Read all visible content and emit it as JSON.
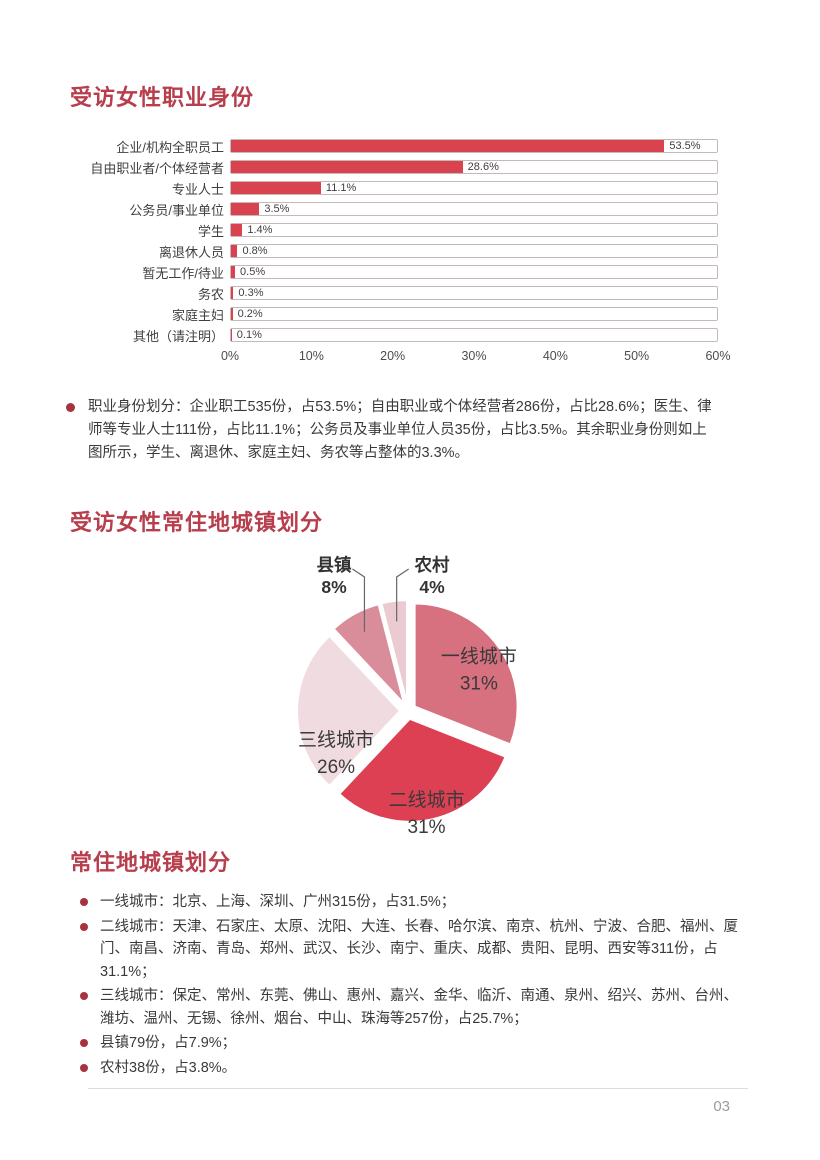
{
  "accent_color": "#b73e4c",
  "section1": {
    "title": "受访女性职业身份",
    "note": "职业身份划分：企业职工535份，占53.5%；自由职业或个体经营者286份，占比28.6%；医生、律师等专业人士111份，占比11.1%；公务员及事业单位人员35份，占比3.5%。其余职业身份则如上图所示，学生、离退休、家庭主妇、务农等占整体的3.3%。"
  },
  "section2": {
    "title": "受访女性常住地城镇划分"
  },
  "section3": {
    "title": "常住地城镇划分",
    "items": [
      "一线城市：北京、上海、深圳、广州315份，占31.5%；",
      "二线城市：天津、石家庄、太原、沈阳、大连、长春、哈尔滨、南京、杭州、宁波、合肥、福州、厦门、南昌、济南、青岛、郑州、武汉、长沙、南宁、重庆、成都、贵阳、昆明、西安等311份，占31.1%；",
      "三线城市：保定、常州、东莞、佛山、惠州、嘉兴、金华、临沂、南通、泉州、绍兴、苏州、台州、潍坊、温州、无锡、徐州、烟台、中山、珠海等257份，占25.7%；",
      "县镇79份，占7.9%；",
      "农村38份，占3.8%。"
    ]
  },
  "chart_data": [
    {
      "type": "bar",
      "orientation": "horizontal",
      "title": "受访女性职业身份",
      "categories": [
        "企业/机构全职员工",
        "自由职业者/个体经营者",
        "专业人士",
        "公务员/事业单位",
        "学生",
        "离退休人员",
        "暂无工作/待业",
        "务农",
        "家庭主妇",
        "其他（请注明）"
      ],
      "values": [
        53.5,
        28.6,
        11.1,
        3.5,
        1.4,
        0.8,
        0.5,
        0.3,
        0.2,
        0.1
      ],
      "value_labels": [
        "53.5%",
        "28.6%",
        "11.1%",
        "3.5%",
        "1.4%",
        "0.8%",
        "0.5%",
        "0.3%",
        "0.2%",
        "0.1%"
      ],
      "xlim": [
        0,
        60
      ],
      "x_ticks": [
        "0%",
        "10%",
        "20%",
        "30%",
        "40%",
        "50%",
        "60%"
      ],
      "bar_color": "#d8434f",
      "grid": false,
      "legend": "none"
    },
    {
      "type": "pie",
      "title": "受访女性常住地城镇划分",
      "slices": [
        {
          "label": "一线城市",
          "value": 31,
          "pct_label": "31%",
          "color": "#d7707f",
          "label_placement": "inside"
        },
        {
          "label": "二线城市",
          "value": 31,
          "pct_label": "31%",
          "color": "#dc4052",
          "label_placement": "inside"
        },
        {
          "label": "三线城市",
          "value": 26,
          "pct_label": "26%",
          "color": "#f0dbe0",
          "label_placement": "inside"
        },
        {
          "label": "县镇",
          "value": 8,
          "pct_label": "8%",
          "color": "#d98d9a",
          "label_placement": "outside"
        },
        {
          "label": "农村",
          "value": 4,
          "pct_label": "4%",
          "color": "#eccad2",
          "label_placement": "outside"
        }
      ],
      "start_angle_deg": 0,
      "direction": "clockwise",
      "exploded": true
    }
  ],
  "footer": {
    "page_number": "03"
  }
}
